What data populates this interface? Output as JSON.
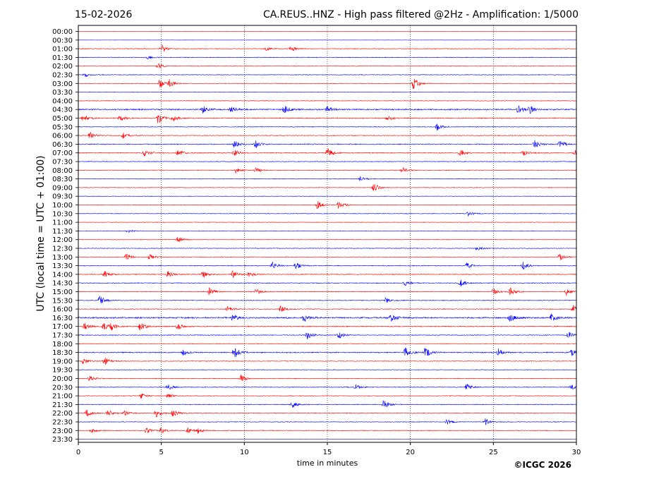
{
  "header": {
    "date": "15-02-2026",
    "title": "CA.REUS..HNZ - High pass filtered @2Hz - Amplification: 1/5000"
  },
  "footer": {
    "copyright": "©ICGC 2026"
  },
  "chart_data": {
    "type": "line",
    "title": "CA.REUS..HNZ - High pass filtered @2Hz - Amplification: 1/5000",
    "xlabel": "time in minutes",
    "ylabel": "UTC (local time = UTC + 01:00)",
    "xlim": [
      0,
      30
    ],
    "xticks": [
      0,
      5,
      10,
      15,
      20,
      25,
      30
    ],
    "vertical_gridlines_at": [
      5,
      10,
      15,
      20,
      25
    ],
    "grid": "dotted vertical lines",
    "row_labels": [
      "00:00",
      "00:30",
      "01:00",
      "01:30",
      "02:00",
      "02:30",
      "03:00",
      "03:30",
      "04:00",
      "04:30",
      "05:00",
      "05:30",
      "06:00",
      "06:30",
      "07:00",
      "07:30",
      "08:00",
      "08:30",
      "09:00",
      "09:30",
      "10:00",
      "10:30",
      "11:00",
      "11:30",
      "12:00",
      "12:30",
      "13:00",
      "13:30",
      "14:00",
      "14:30",
      "15:00",
      "15:30",
      "16:00",
      "16:30",
      "17:00",
      "17:30",
      "18:00",
      "18:30",
      "19:00",
      "19:30",
      "20:00",
      "20:30",
      "21:00",
      "21:30",
      "22:00",
      "22:30",
      "23:00",
      "23:30"
    ],
    "trace_colors": [
      "#ff0000",
      "#0000ff"
    ],
    "trace_noise": [
      0.2,
      0.15,
      0.5,
      0.5,
      0.45,
      0.5,
      0.45,
      0.4,
      0.5,
      1.0,
      0.7,
      0.5,
      0.5,
      0.7,
      0.7,
      0.5,
      0.5,
      0.45,
      0.45,
      0.4,
      0.45,
      0.45,
      0.4,
      0.4,
      0.4,
      0.45,
      0.45,
      0.6,
      0.6,
      0.6,
      0.55,
      0.55,
      0.6,
      1.1,
      0.7,
      0.6,
      0.45,
      0.8,
      0.5,
      0.45,
      0.5,
      0.55,
      0.5,
      0.55,
      0.6,
      0.5,
      0.55,
      0.15
    ],
    "events": [
      {
        "row": "01:00",
        "t": 5.0,
        "amp": 7
      },
      {
        "row": "01:00",
        "t": 12.8,
        "amp": 5
      },
      {
        "row": "01:00",
        "t": 11.3,
        "amp": 3
      },
      {
        "row": "01:30",
        "t": 4.2,
        "amp": 3
      },
      {
        "row": "02:00",
        "t": 4.8,
        "amp": 4
      },
      {
        "row": "02:30",
        "t": 0.4,
        "amp": 3
      },
      {
        "row": "03:00",
        "t": 4.9,
        "amp": 7
      },
      {
        "row": "03:00",
        "t": 5.5,
        "amp": 6
      },
      {
        "row": "03:00",
        "t": 20.2,
        "amp": 10
      },
      {
        "row": "04:30",
        "t": 12.4,
        "amp": 6
      },
      {
        "row": "04:30",
        "t": 15.0,
        "amp": 5
      },
      {
        "row": "04:30",
        "t": 26.5,
        "amp": 7
      },
      {
        "row": "04:30",
        "t": 27.2,
        "amp": 6
      },
      {
        "row": "04:30",
        "t": 7.5,
        "amp": 5
      },
      {
        "row": "04:30",
        "t": 9.2,
        "amp": 4
      },
      {
        "row": "05:00",
        "t": 0.3,
        "amp": 6
      },
      {
        "row": "05:00",
        "t": 2.5,
        "amp": 5
      },
      {
        "row": "05:00",
        "t": 4.8,
        "amp": 8
      },
      {
        "row": "05:00",
        "t": 5.7,
        "amp": 5
      },
      {
        "row": "05:00",
        "t": 18.6,
        "amp": 4
      },
      {
        "row": "05:30",
        "t": 21.6,
        "amp": 5
      },
      {
        "row": "06:00",
        "t": 0.7,
        "amp": 6
      },
      {
        "row": "06:00",
        "t": 2.7,
        "amp": 5
      },
      {
        "row": "06:30",
        "t": 9.4,
        "amp": 6
      },
      {
        "row": "06:30",
        "t": 10.7,
        "amp": 6
      },
      {
        "row": "06:30",
        "t": 27.5,
        "amp": 6
      },
      {
        "row": "06:30",
        "t": 29.0,
        "amp": 7
      },
      {
        "row": "07:00",
        "t": 4.0,
        "amp": 5
      },
      {
        "row": "07:00",
        "t": 6.0,
        "amp": 5
      },
      {
        "row": "07:00",
        "t": 9.4,
        "amp": 5
      },
      {
        "row": "07:00",
        "t": 15.0,
        "amp": 7
      },
      {
        "row": "07:00",
        "t": 23.0,
        "amp": 5
      },
      {
        "row": "07:00",
        "t": 26.8,
        "amp": 4
      },
      {
        "row": "07:00",
        "t": 29.9,
        "amp": 5
      },
      {
        "row": "08:00",
        "t": 9.5,
        "amp": 4
      },
      {
        "row": "08:00",
        "t": 10.7,
        "amp": 4
      },
      {
        "row": "08:00",
        "t": 19.5,
        "amp": 4
      },
      {
        "row": "08:30",
        "t": 17.0,
        "amp": 4
      },
      {
        "row": "09:00",
        "t": 17.8,
        "amp": 6
      },
      {
        "row": "10:00",
        "t": 14.4,
        "amp": 6
      },
      {
        "row": "10:00",
        "t": 15.7,
        "amp": 7
      },
      {
        "row": "10:30",
        "t": 23.5,
        "amp": 4
      },
      {
        "row": "11:30",
        "t": 3.0,
        "amp": 3
      },
      {
        "row": "12:00",
        "t": 6.0,
        "amp": 5
      },
      {
        "row": "12:30",
        "t": 24.0,
        "amp": 4
      },
      {
        "row": "13:00",
        "t": 2.9,
        "amp": 5
      },
      {
        "row": "13:00",
        "t": 4.3,
        "amp": 5
      },
      {
        "row": "13:00",
        "t": 29.0,
        "amp": 5
      },
      {
        "row": "13:30",
        "t": 11.7,
        "amp": 5
      },
      {
        "row": "13:30",
        "t": 13.1,
        "amp": 5
      },
      {
        "row": "13:30",
        "t": 23.4,
        "amp": 5
      },
      {
        "row": "13:30",
        "t": 26.8,
        "amp": 6
      },
      {
        "row": "14:00",
        "t": 1.6,
        "amp": 5
      },
      {
        "row": "14:00",
        "t": 5.4,
        "amp": 5
      },
      {
        "row": "14:00",
        "t": 7.5,
        "amp": 5
      },
      {
        "row": "14:00",
        "t": 9.3,
        "amp": 5
      },
      {
        "row": "14:00",
        "t": 10.3,
        "amp": 5
      },
      {
        "row": "14:30",
        "t": 23.0,
        "amp": 6
      },
      {
        "row": "14:30",
        "t": 19.7,
        "amp": 4
      },
      {
        "row": "15:00",
        "t": 7.9,
        "amp": 6
      },
      {
        "row": "15:00",
        "t": 10.7,
        "amp": 5
      },
      {
        "row": "15:00",
        "t": 25.0,
        "amp": 5
      },
      {
        "row": "15:00",
        "t": 26.0,
        "amp": 6
      },
      {
        "row": "15:00",
        "t": 29.4,
        "amp": 6
      },
      {
        "row": "15:30",
        "t": 1.3,
        "amp": 8
      },
      {
        "row": "15:30",
        "t": 18.5,
        "amp": 4
      },
      {
        "row": "16:00",
        "t": 12.2,
        "amp": 5
      },
      {
        "row": "16:00",
        "t": 9.0,
        "amp": 4
      },
      {
        "row": "16:00",
        "t": 29.8,
        "amp": 6
      },
      {
        "row": "16:30",
        "t": 9.3,
        "amp": 6
      },
      {
        "row": "16:30",
        "t": 13.6,
        "amp": 6
      },
      {
        "row": "16:30",
        "t": 18.8,
        "amp": 6
      },
      {
        "row": "16:30",
        "t": 26.0,
        "amp": 6
      },
      {
        "row": "16:30",
        "t": 28.5,
        "amp": 6
      },
      {
        "row": "17:00",
        "t": 0.4,
        "amp": 6
      },
      {
        "row": "17:00",
        "t": 1.5,
        "amp": 6
      },
      {
        "row": "17:00",
        "t": 2.0,
        "amp": 5
      },
      {
        "row": "17:00",
        "t": 3.7,
        "amp": 8
      },
      {
        "row": "17:00",
        "t": 6.0,
        "amp": 5
      },
      {
        "row": "17:30",
        "t": 13.8,
        "amp": 6
      },
      {
        "row": "17:30",
        "t": 15.7,
        "amp": 5
      },
      {
        "row": "17:30",
        "t": 29.5,
        "amp": 5
      },
      {
        "row": "18:30",
        "t": 9.4,
        "amp": 9
      },
      {
        "row": "18:30",
        "t": 19.7,
        "amp": 7
      },
      {
        "row": "18:30",
        "t": 20.9,
        "amp": 8
      },
      {
        "row": "18:30",
        "t": 25.3,
        "amp": 5
      },
      {
        "row": "18:30",
        "t": 29.7,
        "amp": 5
      },
      {
        "row": "18:30",
        "t": 6.3,
        "amp": 4
      },
      {
        "row": "19:00",
        "t": 0.3,
        "amp": 5
      },
      {
        "row": "19:00",
        "t": 1.6,
        "amp": 6
      },
      {
        "row": "20:00",
        "t": 0.7,
        "amp": 5
      },
      {
        "row": "20:00",
        "t": 9.8,
        "amp": 5
      },
      {
        "row": "20:30",
        "t": 5.4,
        "amp": 5
      },
      {
        "row": "20:30",
        "t": 16.7,
        "amp": 4
      },
      {
        "row": "20:30",
        "t": 23.4,
        "amp": 5
      },
      {
        "row": "20:30",
        "t": 29.7,
        "amp": 4
      },
      {
        "row": "21:00",
        "t": 3.8,
        "amp": 4
      },
      {
        "row": "21:00",
        "t": 5.4,
        "amp": 4
      },
      {
        "row": "21:30",
        "t": 12.9,
        "amp": 5
      },
      {
        "row": "21:30",
        "t": 18.4,
        "amp": 7
      },
      {
        "row": "22:00",
        "t": 0.5,
        "amp": 6
      },
      {
        "row": "22:00",
        "t": 1.8,
        "amp": 5
      },
      {
        "row": "22:00",
        "t": 2.8,
        "amp": 4
      },
      {
        "row": "22:00",
        "t": 4.7,
        "amp": 6
      },
      {
        "row": "22:00",
        "t": 5.7,
        "amp": 6
      },
      {
        "row": "22:30",
        "t": 24.5,
        "amp": 5
      },
      {
        "row": "22:30",
        "t": 22.2,
        "amp": 4
      },
      {
        "row": "23:00",
        "t": 4.1,
        "amp": 5
      },
      {
        "row": "23:00",
        "t": 5.0,
        "amp": 5
      },
      {
        "row": "23:00",
        "t": 6.6,
        "amp": 4
      },
      {
        "row": "23:00",
        "t": 7.2,
        "amp": 4
      },
      {
        "row": "23:00",
        "t": 0.8,
        "amp": 4
      }
    ]
  }
}
